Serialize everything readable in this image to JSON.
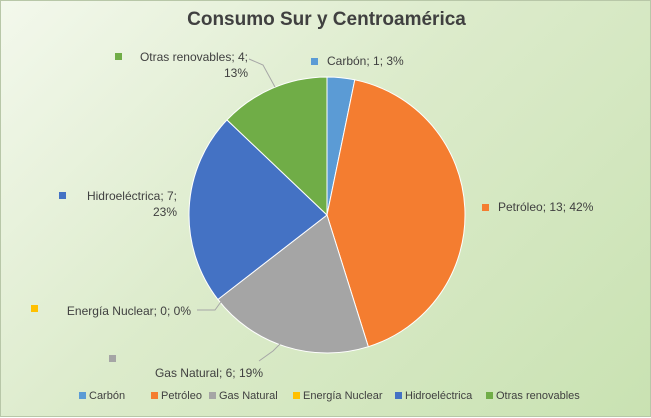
{
  "chart_data": {
    "type": "pie",
    "title": "Consumo  Sur y Centroamérica",
    "categories": [
      "Carbón",
      "Petróleo",
      "Gas Natural",
      "Energía Nuclear",
      "Hidroeléctrica",
      "Otras renovables"
    ],
    "values": [
      1,
      13,
      6,
      0,
      7,
      4
    ],
    "percent_labels": [
      "3%",
      "42%",
      "19%",
      "0%",
      "23%",
      "13%"
    ],
    "data_labels": [
      [
        "Carbón; 1; 3%"
      ],
      [
        "Petróleo; 13; 42%"
      ],
      [
        "Gas Natural; 6; 19%"
      ],
      [
        "Energía Nuclear; 0; 0%"
      ],
      [
        "Hidroeléctrica; 7;",
        "23%"
      ],
      [
        "Otras renovables; 4;",
        "13%"
      ]
    ],
    "colors": [
      "#5b9bd5",
      "#f47d30",
      "#a5a5a5",
      "#ffc000",
      "#4472c4",
      "#70ad47"
    ],
    "legend_position": "bottom"
  }
}
